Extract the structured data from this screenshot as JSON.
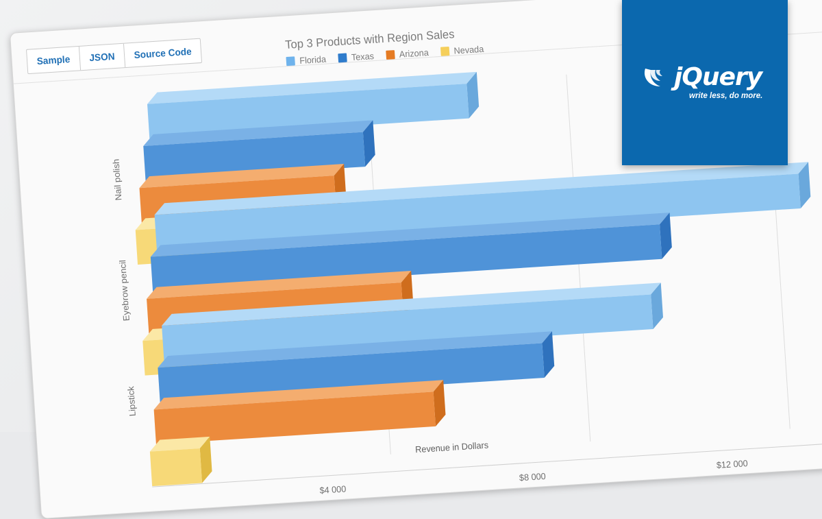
{
  "tabs": [
    "Sample",
    "JSON",
    "Source Code"
  ],
  "brand": {
    "name": "jQuery",
    "tagline": "write less, do more."
  },
  "colors": {
    "Florida": "#8ec5f0",
    "Texas": "#4a90d6",
    "Arizona": "#ec8a3b",
    "Nevada": "#f7d672",
    "logo_bg": "#0b68ae"
  },
  "chart_data": {
    "type": "bar",
    "orientation": "horizontal",
    "three_d": true,
    "title": "Top 3 Products with Region Sales",
    "xlabel": "Revenue in Dollars",
    "ylabel": "",
    "xlim": [
      0,
      13500
    ],
    "ticks": [
      "$4 000",
      "$8 000",
      "$12 000"
    ],
    "tick_values": [
      4000,
      8000,
      12000
    ],
    "legend_position": "top",
    "grid": true,
    "categories": [
      "Nail polish",
      "Eyebrow pencil",
      "Lipstick"
    ],
    "series": [
      {
        "name": "Florida",
        "values": [
          6400,
          12900,
          9800
        ]
      },
      {
        "name": "Texas",
        "values": [
          4400,
          10200,
          7700
        ]
      },
      {
        "name": "Arizona",
        "values": [
          3900,
          5100,
          5600
        ]
      },
      {
        "name": "Nevada",
        "values": [
          2400,
          1300,
          1000
        ]
      }
    ]
  }
}
